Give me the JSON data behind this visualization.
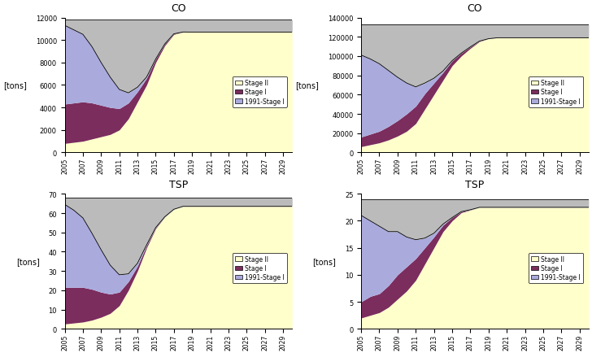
{
  "years": [
    2005,
    2006,
    2007,
    2008,
    2009,
    2010,
    2011,
    2012,
    2013,
    2014,
    2015,
    2016,
    2017,
    2018,
    2019,
    2020,
    2021,
    2022,
    2023,
    2024,
    2025,
    2026,
    2027,
    2028,
    2029,
    2030
  ],
  "subplots": [
    {
      "title": "CO",
      "ylabel": "[tons]",
      "ylim": [
        0,
        12000
      ],
      "yticks": [
        0,
        2000,
        4000,
        6000,
        8000,
        10000,
        12000
      ],
      "stage2": [
        800,
        900,
        1000,
        1200,
        1400,
        1600,
        2000,
        3000,
        4500,
        6000,
        8000,
        9500,
        10500,
        10700,
        10700,
        10700,
        10700,
        10700,
        10700,
        10700,
        10700,
        10700,
        10700,
        10700,
        10700,
        10700
      ],
      "stage1": [
        3500,
        3500,
        3500,
        3200,
        2800,
        2400,
        1900,
        1400,
        900,
        600,
        300,
        150,
        50,
        10,
        0,
        0,
        0,
        0,
        0,
        0,
        0,
        0,
        0,
        0,
        0,
        0
      ],
      "stage1_1991": [
        7000,
        6500,
        6000,
        5000,
        3800,
        2700,
        1700,
        900,
        400,
        100,
        10,
        0,
        0,
        0,
        0,
        0,
        0,
        0,
        0,
        0,
        0,
        0,
        0,
        0,
        0,
        0
      ],
      "gray_top": [
        11800,
        11800,
        11800,
        11800,
        11800,
        11800,
        11800,
        11800,
        11800,
        11800,
        11800,
        11800,
        11800,
        11800,
        11800,
        11800,
        11800,
        11800,
        11800,
        11800,
        11800,
        11800,
        11800,
        11800,
        11800,
        11800
      ]
    },
    {
      "title": "CO",
      "ylabel": "[tons]",
      "ylim": [
        0,
        140000
      ],
      "yticks": [
        0,
        20000,
        40000,
        60000,
        80000,
        100000,
        120000,
        140000
      ],
      "stage2": [
        6000,
        8000,
        10000,
        13000,
        17000,
        22000,
        30000,
        45000,
        60000,
        75000,
        90000,
        100000,
        108000,
        115000,
        118000,
        119000,
        119000,
        119000,
        119000,
        119000,
        119000,
        119000,
        119000,
        119000,
        119000,
        119000
      ],
      "stage1": [
        10000,
        11000,
        12000,
        14000,
        16000,
        18000,
        18000,
        16000,
        12000,
        8000,
        5000,
        3000,
        1500,
        500,
        0,
        0,
        0,
        0,
        0,
        0,
        0,
        0,
        0,
        0,
        0,
        0
      ],
      "stage1_1991": [
        85000,
        78000,
        70000,
        58000,
        45000,
        32000,
        20000,
        11000,
        5000,
        1500,
        200,
        0,
        0,
        0,
        0,
        0,
        0,
        0,
        0,
        0,
        0,
        0,
        0,
        0,
        0,
        0
      ],
      "gray_top": [
        133000,
        133000,
        133000,
        133000,
        133000,
        133000,
        133000,
        133000,
        133000,
        133000,
        133000,
        133000,
        133000,
        133000,
        133000,
        133000,
        133000,
        133000,
        133000,
        133000,
        133000,
        133000,
        133000,
        133000,
        133000,
        133000
      ]
    },
    {
      "title": "TSP",
      "ylabel": "[tons]",
      "ylim": [
        0,
        70
      ],
      "yticks": [
        0,
        10,
        20,
        30,
        40,
        50,
        60,
        70
      ],
      "stage2": [
        2.5,
        3.0,
        3.5,
        4.5,
        6.0,
        8.0,
        12.0,
        20.0,
        30.0,
        42.0,
        52.0,
        58.0,
        62.0,
        63.5,
        63.5,
        63.5,
        63.5,
        63.5,
        63.5,
        63.5,
        63.5,
        63.5,
        63.5,
        63.5,
        63.5,
        63.5
      ],
      "stage1": [
        19.0,
        18.5,
        18.0,
        16.0,
        13.0,
        10.0,
        7.0,
        4.5,
        2.5,
        1.2,
        0.5,
        0.1,
        0.0,
        0.0,
        0.0,
        0.0,
        0.0,
        0.0,
        0.0,
        0.0,
        0.0,
        0.0,
        0.0,
        0.0,
        0.0,
        0.0
      ],
      "stage1_1991": [
        43.0,
        40.0,
        36.0,
        29.0,
        22.0,
        15.0,
        9.0,
        4.0,
        1.5,
        0.3,
        0.0,
        0.0,
        0.0,
        0.0,
        0.0,
        0.0,
        0.0,
        0.0,
        0.0,
        0.0,
        0.0,
        0.0,
        0.0,
        0.0,
        0.0,
        0.0
      ],
      "gray_top": [
        68,
        68,
        68,
        68,
        68,
        68,
        68,
        68,
        68,
        68,
        68,
        68,
        68,
        68,
        68,
        68,
        68,
        68,
        68,
        68,
        68,
        68,
        68,
        68,
        68,
        68
      ]
    },
    {
      "title": "TSP",
      "ylabel": "[tons]",
      "ylim": [
        0,
        25
      ],
      "yticks": [
        0,
        5,
        10,
        15,
        20,
        25
      ],
      "stage2": [
        2.0,
        2.5,
        3.0,
        4.0,
        5.5,
        7.0,
        9.0,
        12.0,
        15.0,
        18.0,
        20.0,
        21.5,
        22.0,
        22.5,
        22.5,
        22.5,
        22.5,
        22.5,
        22.5,
        22.5,
        22.5,
        22.5,
        22.5,
        22.5,
        22.5,
        22.5
      ],
      "stage1": [
        3.0,
        3.5,
        3.5,
        4.0,
        4.5,
        4.5,
        4.0,
        3.0,
        2.0,
        1.2,
        0.6,
        0.2,
        0.05,
        0.0,
        0.0,
        0.0,
        0.0,
        0.0,
        0.0,
        0.0,
        0.0,
        0.0,
        0.0,
        0.0,
        0.0,
        0.0
      ],
      "stage1_1991": [
        16.0,
        14.0,
        12.5,
        10.0,
        8.0,
        5.5,
        3.5,
        1.8,
        0.7,
        0.2,
        0.0,
        0.0,
        0.0,
        0.0,
        0.0,
        0.0,
        0.0,
        0.0,
        0.0,
        0.0,
        0.0,
        0.0,
        0.0,
        0.0,
        0.0,
        0.0
      ],
      "gray_top": [
        24.0,
        24.0,
        24.0,
        24.0,
        24.0,
        24.0,
        24.0,
        24.0,
        24.0,
        24.0,
        24.0,
        24.0,
        24.0,
        24.0,
        24.0,
        24.0,
        24.0,
        24.0,
        24.0,
        24.0,
        24.0,
        24.0,
        24.0,
        24.0,
        24.0,
        24.0
      ]
    }
  ],
  "colors": {
    "stage2": "#FFFFCC",
    "stage1": "#7B2D5E",
    "stage1_1991": "#AAAADD",
    "gray": "#BBBBBB"
  },
  "xtick_labels": [
    "2005",
    "2007",
    "2009",
    "2011",
    "2013",
    "2015",
    "2017",
    "2019",
    "2021",
    "2023",
    "2025",
    "2027",
    "2029"
  ],
  "xtick_years": [
    2005,
    2007,
    2009,
    2011,
    2013,
    2015,
    2017,
    2019,
    2021,
    2023,
    2025,
    2027,
    2029
  ]
}
